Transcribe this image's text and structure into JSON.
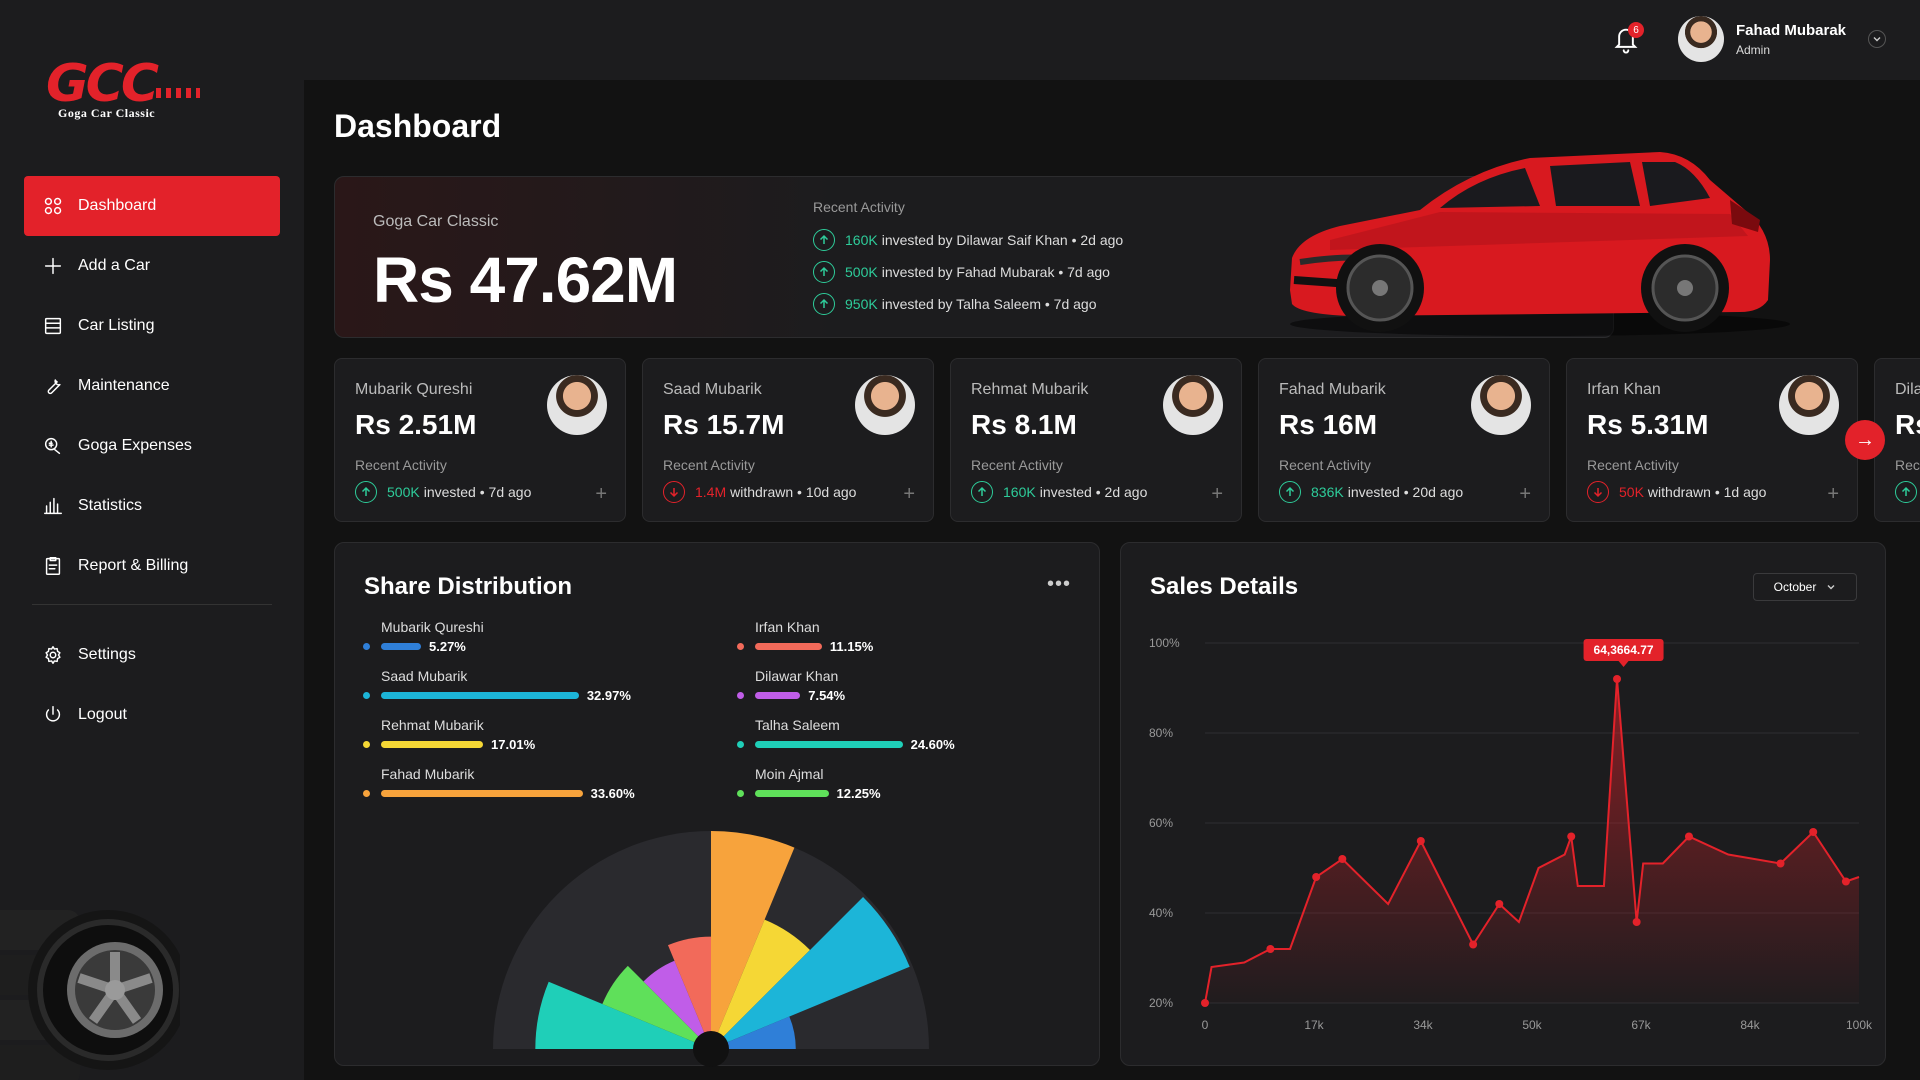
{
  "sidebar": {
    "logo": {
      "text": "GCC",
      "subtitle": "Goga Car Classic"
    },
    "items": [
      {
        "label": "Dashboard",
        "icon": "grid-icon",
        "active": true
      },
      {
        "label": "Add a Car",
        "icon": "plus-icon"
      },
      {
        "label": "Car Listing",
        "icon": "list-icon"
      },
      {
        "label": "Maintenance",
        "icon": "wrench-icon"
      },
      {
        "label": "Goga Expenses",
        "icon": "expenses-icon"
      },
      {
        "label": "Statistics",
        "icon": "bar-chart-icon"
      },
      {
        "label": "Report & Billing",
        "icon": "clipboard-icon"
      }
    ],
    "bottom_items": [
      {
        "label": "Settings",
        "icon": "gear-icon"
      },
      {
        "label": "Logout",
        "icon": "power-icon"
      }
    ]
  },
  "header": {
    "notification_count": "6",
    "user_name": "Fahad Mubarak",
    "user_role": "Admin"
  },
  "page_title": "Dashboard",
  "hero": {
    "label": "Goga Car Classic",
    "value": "Rs 47.62M",
    "recent_title": "Recent Activity",
    "activities": [
      {
        "amount": "160K",
        "text": "invested by Dilawar Saif Khan • 2d ago",
        "direction": "up"
      },
      {
        "amount": "500K",
        "text": "invested by Fahad Mubarak • 7d ago",
        "direction": "up"
      },
      {
        "amount": "950K",
        "text": "invested by Talha Saleem • 7d ago",
        "direction": "up"
      }
    ]
  },
  "investors": [
    {
      "name": "Mubarik Qureshi",
      "value": "Rs 2.51M",
      "ra_label": "Recent Activity",
      "amount": "500K",
      "text": "invested • 7d ago",
      "direction": "up"
    },
    {
      "name": "Saad Mubarik",
      "value": "Rs 15.7M",
      "ra_label": "Recent Activity",
      "amount": "1.4M",
      "text": "withdrawn • 10d ago",
      "direction": "down"
    },
    {
      "name": "Rehmat Mubarik",
      "value": "Rs 8.1M",
      "ra_label": "Recent Activity",
      "amount": "160K",
      "text": "invested • 2d ago",
      "direction": "up"
    },
    {
      "name": "Fahad Mubarik",
      "value": "Rs 16M",
      "ra_label": "Recent Activity",
      "amount": "836K",
      "text": "invested • 20d ago",
      "direction": "up"
    },
    {
      "name": "Irfan Khan",
      "value": "Rs 5.31M",
      "ra_label": "Recent Activity",
      "amount": "50K",
      "text": "withdrawn • 1d ago",
      "direction": "down"
    },
    {
      "name": "Dila",
      "value": "Rs",
      "ra_label": "Rec",
      "amount": "",
      "text": "",
      "direction": "up"
    }
  ],
  "share": {
    "title": "Share Distribution",
    "items": [
      {
        "name": "Mubarik Qureshi",
        "pct": "5.27%",
        "value": 5.27,
        "color": "#2f7fd8"
      },
      {
        "name": "Saad Mubarik",
        "pct": "32.97%",
        "value": 32.97,
        "color": "#1cb5d8"
      },
      {
        "name": "Rehmat Mubarik",
        "pct": "17.01%",
        "value": 17.01,
        "color": "#f5d735"
      },
      {
        "name": "Fahad Mubarik",
        "pct": "33.60%",
        "value": 33.6,
        "color": "#f7a33c"
      },
      {
        "name": "Irfan Khan",
        "pct": "11.15%",
        "value": 11.15,
        "color": "#f26a5a"
      },
      {
        "name": "Dilawar Khan",
        "pct": "7.54%",
        "value": 7.54,
        "color": "#c05de8"
      },
      {
        "name": "Talha Saleem",
        "pct": "24.60%",
        "value": 24.6,
        "color": "#1fcfb8"
      },
      {
        "name": "Moin Ajmal",
        "pct": "12.25%",
        "value": 12.25,
        "color": "#5fe05a"
      }
    ]
  },
  "chart_data": {
    "type": "area",
    "title": "Sales Details",
    "month": "October",
    "x_ticks": [
      "0",
      "17k",
      "34k",
      "50k",
      "67k",
      "84k",
      "100k"
    ],
    "y_ticks": [
      "100%",
      "80%",
      "60%",
      "40%",
      "20%"
    ],
    "xlim": [
      0,
      100
    ],
    "ylim": [
      20,
      100
    ],
    "grid": true,
    "x": [
      0,
      1,
      6,
      10,
      13,
      17,
      21,
      28,
      33,
      41,
      45,
      48,
      51,
      55,
      56,
      57,
      61,
      63,
      66,
      67,
      70,
      74,
      80,
      88,
      93,
      98,
      100
    ],
    "y": [
      20,
      28,
      29,
      32,
      32,
      48,
      52,
      42,
      56,
      33,
      42,
      38,
      50,
      53,
      57,
      46,
      46,
      92,
      38,
      51,
      51,
      57,
      53,
      51,
      58,
      47,
      48
    ],
    "highlight": {
      "label": "64,3664.77",
      "x": 64,
      "y": 92
    },
    "color": "#e3222a"
  }
}
